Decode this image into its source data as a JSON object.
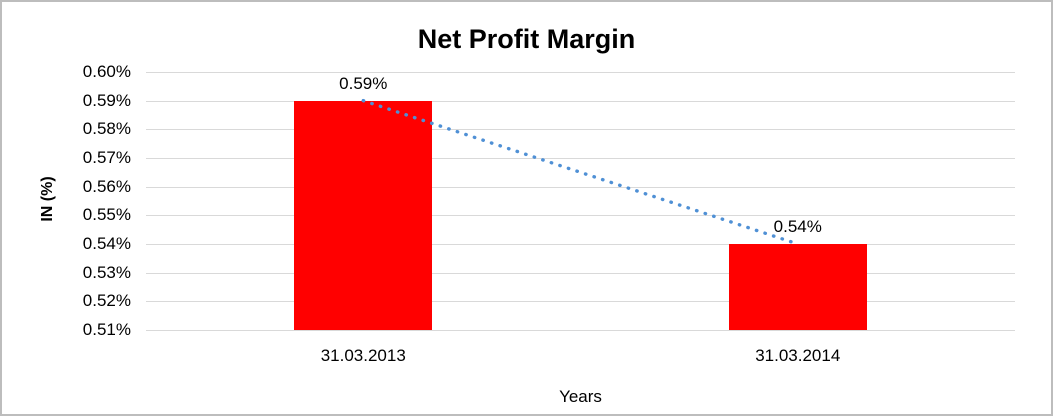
{
  "chart": {
    "colors": {
      "bar": "#ff0000",
      "trendline": "#4f90d5",
      "gridline": "#d9d9d9",
      "frame_border": "#bdbdbd",
      "text": "#000000"
    }
  },
  "chart_data": {
    "type": "bar",
    "title": "Net Profit Margin",
    "xlabel": "Years",
    "ylabel": "IN (%)",
    "categories": [
      "31.03.2013",
      "31.03.2014"
    ],
    "values": [
      0.59,
      0.54
    ],
    "data_labels": [
      "0.59%",
      "0.54%"
    ],
    "ylim": [
      0.51,
      0.6
    ],
    "ytick_labels": [
      "0.60%",
      "0.59%",
      "0.58%",
      "0.57%",
      "0.56%",
      "0.55%",
      "0.54%",
      "0.53%",
      "0.52%",
      "0.51%"
    ],
    "grid": true,
    "legend": "none",
    "trendline": {
      "style": "dotted",
      "connects": [
        0.59,
        0.54
      ]
    }
  }
}
